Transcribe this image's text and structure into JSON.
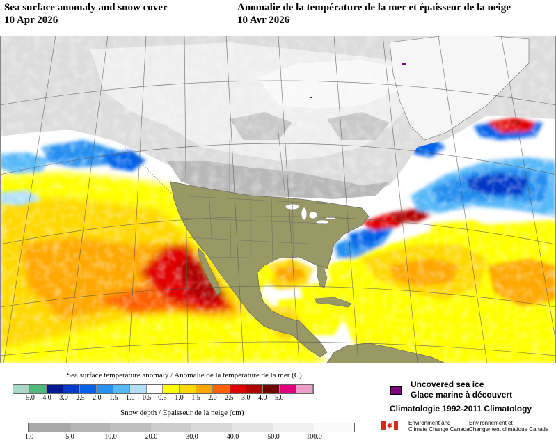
{
  "header": {
    "title_en": "Sea surface anomaly and snow cover",
    "date_en": "10 Apr 2026",
    "title_fr": "Anomalie de la température de la mer et épaisseur de la neige",
    "date_fr": "10 Avr 2026"
  },
  "map": {
    "region": "North America and adjacent oceans",
    "projection": "polar stereographic"
  },
  "sst_legend": {
    "title": "Sea surface temperature anomaly / Anomalie de la température de la mer (C)",
    "ticks": [
      "-5.0",
      "-4.0",
      "-3.0",
      "-2.5",
      "-2.0",
      "-1.5",
      "-1.0",
      "-0.5",
      "0.5",
      "1.0",
      "1.5",
      "2.0",
      "2.5",
      "3.0",
      "4.0",
      "5.0"
    ],
    "colors": [
      "#a8d8c8",
      "#50b878",
      "#001890",
      "#0038c8",
      "#0060e8",
      "#2890f0",
      "#58b8f8",
      "#b0e0f8",
      "#ffffff",
      "#ffff00",
      "#ffd800",
      "#ffa800",
      "#ff6000",
      "#e00000",
      "#b00000",
      "#700000",
      "#e0007a",
      "#f0a0c8"
    ]
  },
  "snow_legend": {
    "title": "Snow depth / Épaisseur de la neige (cm)",
    "ticks": [
      "1.0",
      "5.0",
      "10.0",
      "20.0",
      "30.0",
      "40.0",
      "50.0",
      "100.0"
    ],
    "colors": [
      "#a8a8a8",
      "#b4b4b4",
      "#c0c0c0",
      "#cccccc",
      "#d8d8d8",
      "#e4e4e4",
      "#f0f0f0",
      "#fafafa"
    ]
  },
  "sea_ice": {
    "label_en": "Uncovered sea ice",
    "label_fr": "Glace marine à découvert",
    "color": "#800080"
  },
  "climatology": "Climatologie 1992-2011 Climatology",
  "agency": {
    "name_en_1": "Environment and",
    "name_en_2": "Climate Change Canada",
    "name_fr_1": "Environnement et",
    "name_fr_2": "Changement climatique Canada"
  },
  "palette": {
    "land": "#999966",
    "boundary": "#6a6a6a"
  }
}
